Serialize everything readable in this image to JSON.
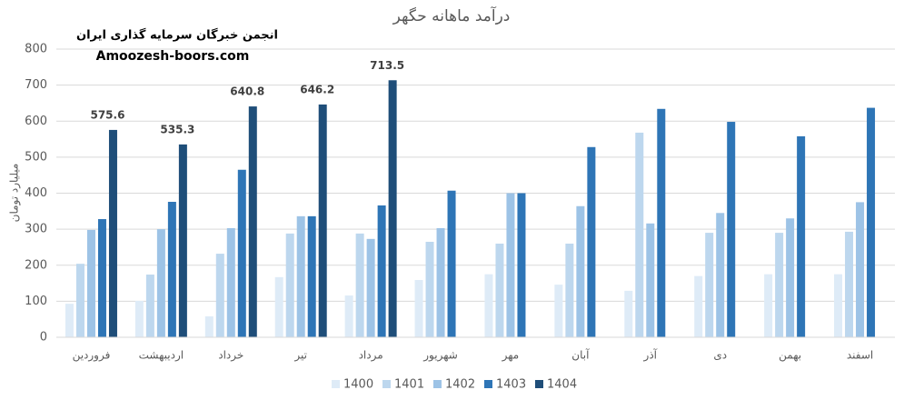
{
  "chart_data": {
    "type": "bar",
    "title": "درآمد ماهانه حگهر",
    "annotations": [
      "انجمن خبرگان سرمایه گذاری ایران",
      "Amoozesh-boors.com"
    ],
    "y_label": "میلیارد تومان",
    "categories": [
      "فروردین",
      "اردیبهشت",
      "خرداد",
      "تیر",
      "مرداد",
      "شهریور",
      "مهر",
      "آبان",
      "آذر",
      "دی",
      "بهمن",
      "اسفند"
    ],
    "series": [
      {
        "name": "1400",
        "color": "#deebf7",
        "values": [
          93,
          101,
          58,
          167,
          116,
          159,
          175,
          146,
          129,
          170,
          175,
          175
        ]
      },
      {
        "name": "1401",
        "color": "#bdd7ee",
        "values": [
          204,
          174,
          232,
          288,
          288,
          265,
          260,
          260,
          568,
          290,
          290,
          293
        ]
      },
      {
        "name": "1402",
        "color": "#9dc3e6",
        "values": [
          298,
          300,
          303,
          336,
          273,
          303,
          400,
          364,
          316,
          345,
          330,
          375
        ]
      },
      {
        "name": "1403",
        "color": "#2e75b6",
        "values": [
          328,
          376,
          465,
          336,
          366,
          407,
          400,
          528,
          634,
          598,
          558,
          637
        ]
      },
      {
        "name": "1404",
        "color": "#1f4e79",
        "values": [
          575.6,
          535.3,
          640.8,
          646.2,
          713.5,
          null,
          null,
          null,
          null,
          null,
          null,
          null
        ]
      }
    ],
    "ylim": [
      0,
      800
    ],
    "yticks": [
      0,
      100,
      200,
      300,
      400,
      500,
      600,
      700,
      800
    ],
    "grid": true
  }
}
